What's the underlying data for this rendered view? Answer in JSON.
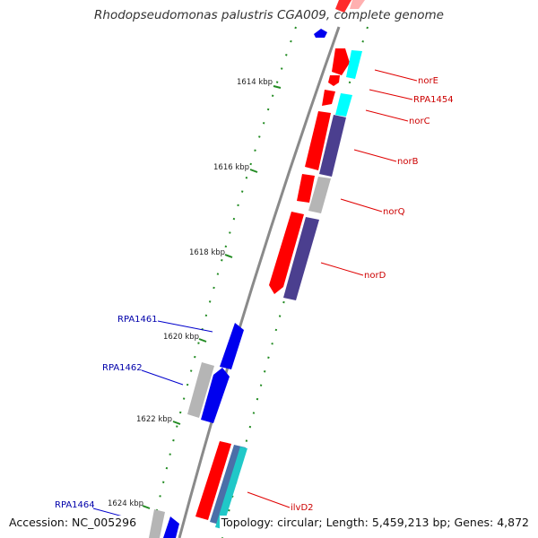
{
  "title": "Rhodopseudomonas palustris CGA009, complete genome",
  "footer": {
    "accession": "Accession: NC_005296",
    "summary": "Topology: circular; Length: 5,459,213 bp; Genes: 4,872"
  },
  "colors": {
    "backbone": "#8a8a8a",
    "tick": "#228b22",
    "forward_cds": "#ff0000",
    "reverse_cds": "#0000ee",
    "rna": "#00ffff",
    "ortholog": "#4b3f8f",
    "other": "#b0b0b0",
    "forward_label": "#cc0000",
    "reverse_label": "#0000aa"
  },
  "ticks": [
    {
      "label": "1614 kbp"
    },
    {
      "label": "1616 kbp"
    },
    {
      "label": "1618 kbp"
    },
    {
      "label": "1620 kbp"
    },
    {
      "label": "1622 kbp"
    },
    {
      "label": "1624 kbp"
    }
  ],
  "gene_labels": [
    {
      "name": "norE",
      "strand": "forward"
    },
    {
      "name": "RPA1454",
      "strand": "forward"
    },
    {
      "name": "norC",
      "strand": "forward"
    },
    {
      "name": "norB",
      "strand": "forward"
    },
    {
      "name": "norQ",
      "strand": "forward"
    },
    {
      "name": "norD",
      "strand": "forward"
    },
    {
      "name": "ilvD2",
      "strand": "forward"
    },
    {
      "name": "RPA1461",
      "strand": "reverse"
    },
    {
      "name": "RPA1462",
      "strand": "reverse"
    },
    {
      "name": "RPA1464",
      "strand": "reverse"
    }
  ]
}
